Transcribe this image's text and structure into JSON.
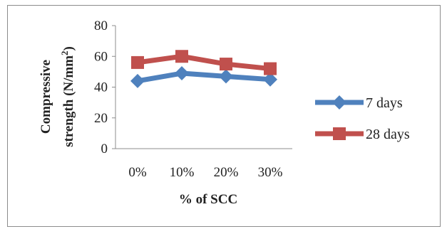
{
  "chart_data": {
    "type": "line",
    "categories": [
      "0%",
      "10%",
      "20%",
      "30%"
    ],
    "series": [
      {
        "name": "7 days",
        "values": [
          44,
          49,
          47,
          45
        ],
        "color": "#4f81bd",
        "marker": "diamond"
      },
      {
        "name": "28 days",
        "values": [
          56,
          60,
          55,
          52
        ],
        "color": "#c0504d",
        "marker": "square"
      }
    ],
    "title": "",
    "xlabel": "% of SCC",
    "ylabel_line1": "Compressive",
    "ylabel_line2": "strength (N/mm",
    "ylabel_sup": "2",
    "ylabel_close": ")",
    "ylim": [
      0,
      80
    ],
    "yticks": [
      0,
      20,
      40,
      60,
      80
    ],
    "grid": false,
    "legend": "right"
  }
}
